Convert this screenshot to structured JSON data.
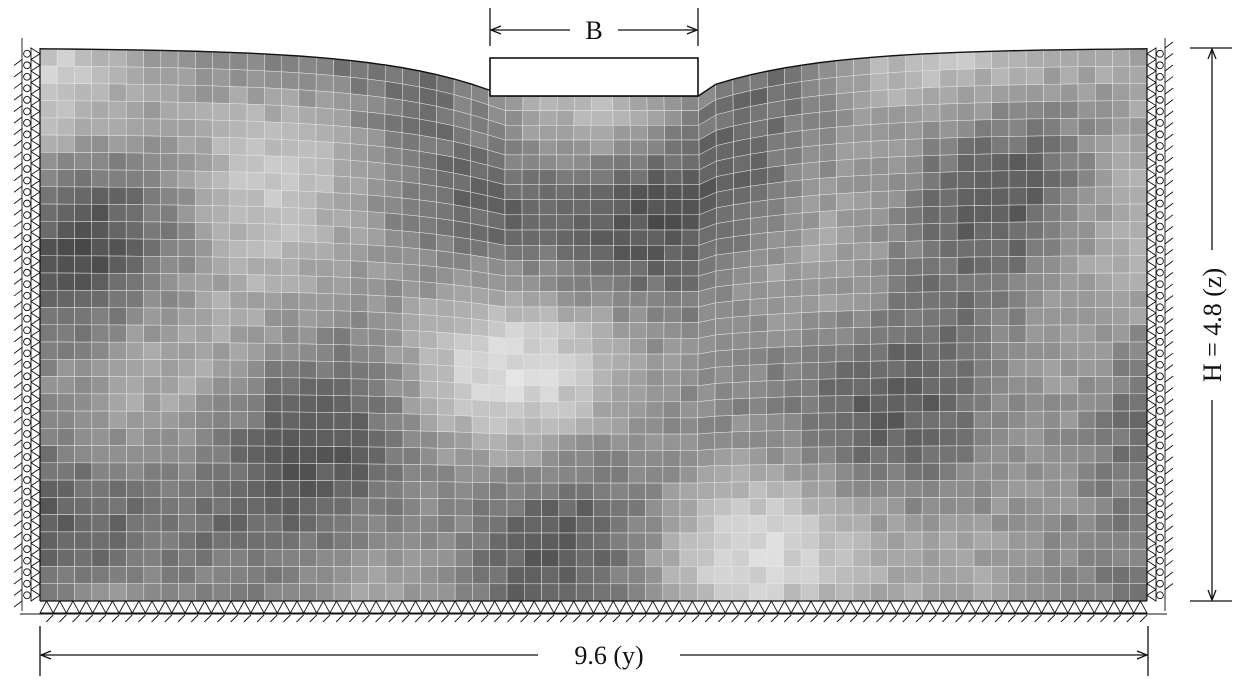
{
  "labels": {
    "footing_width": "B",
    "height": "H = 4.8 (z)",
    "width": "9.6 (y)"
  }
}
